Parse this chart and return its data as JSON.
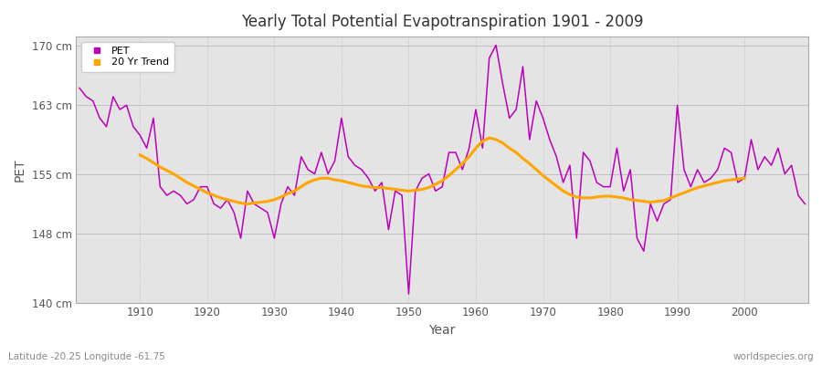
{
  "title": "Yearly Total Potential Evapotranspiration 1901 - 2009",
  "xlabel": "Year",
  "ylabel": "PET",
  "footnote_left": "Latitude -20.25 Longitude -61.75",
  "footnote_right": "worldspecies.org",
  "ylim": [
    140,
    171
  ],
  "yticks": [
    140,
    148,
    155,
    163,
    170
  ],
  "ytick_labels": [
    "140 cm",
    "148 cm",
    "155 cm",
    "163 cm",
    "170 cm"
  ],
  "xlim": [
    1900.5,
    2009.5
  ],
  "xticks": [
    1910,
    1920,
    1930,
    1940,
    1950,
    1960,
    1970,
    1980,
    1990,
    2000
  ],
  "pet_color": "#BB00BB",
  "trend_color": "#FFA500",
  "fig_bg_color": "#FFFFFF",
  "plot_bg_color": "#E4E4E4",
  "legend_labels": [
    "PET",
    "20 Yr Trend"
  ],
  "years": [
    1901,
    1902,
    1903,
    1904,
    1905,
    1906,
    1907,
    1908,
    1909,
    1910,
    1911,
    1912,
    1913,
    1914,
    1915,
    1916,
    1917,
    1918,
    1919,
    1920,
    1921,
    1922,
    1923,
    1924,
    1925,
    1926,
    1927,
    1928,
    1929,
    1930,
    1931,
    1932,
    1933,
    1934,
    1935,
    1936,
    1937,
    1938,
    1939,
    1940,
    1941,
    1942,
    1943,
    1944,
    1945,
    1946,
    1947,
    1948,
    1949,
    1950,
    1951,
    1952,
    1953,
    1954,
    1955,
    1956,
    1957,
    1958,
    1959,
    1960,
    1961,
    1962,
    1963,
    1964,
    1965,
    1966,
    1967,
    1968,
    1969,
    1970,
    1971,
    1972,
    1973,
    1974,
    1975,
    1976,
    1977,
    1978,
    1979,
    1980,
    1981,
    1982,
    1983,
    1984,
    1985,
    1986,
    1987,
    1988,
    1989,
    1990,
    1991,
    1992,
    1993,
    1994,
    1995,
    1996,
    1997,
    1998,
    1999,
    2000,
    2001,
    2002,
    2003,
    2004,
    2005,
    2006,
    2007,
    2008,
    2009
  ],
  "pet_values": [
    165.0,
    164.0,
    163.5,
    161.5,
    160.5,
    164.0,
    162.5,
    163.0,
    160.5,
    159.5,
    158.0,
    161.5,
    153.5,
    152.5,
    153.0,
    152.5,
    151.5,
    152.0,
    153.5,
    153.5,
    151.5,
    151.0,
    152.0,
    150.5,
    147.5,
    153.0,
    151.5,
    151.0,
    150.5,
    147.5,
    151.5,
    153.5,
    152.5,
    157.0,
    155.5,
    155.0,
    157.5,
    155.0,
    156.5,
    161.5,
    157.0,
    156.0,
    155.5,
    154.5,
    153.0,
    154.0,
    148.5,
    153.0,
    152.5,
    141.0,
    153.0,
    154.5,
    155.0,
    153.0,
    153.5,
    157.5,
    157.5,
    155.5,
    158.0,
    162.5,
    158.0,
    168.5,
    170.0,
    165.5,
    161.5,
    162.5,
    167.5,
    159.0,
    163.5,
    161.5,
    159.0,
    157.0,
    154.0,
    156.0,
    147.5,
    157.5,
    156.5,
    154.0,
    153.5,
    153.5,
    158.0,
    153.0,
    155.5,
    147.5,
    146.0,
    151.5,
    149.5,
    151.5,
    152.0,
    163.0,
    155.5,
    153.5,
    155.5,
    154.0,
    154.5,
    155.5,
    158.0,
    157.5,
    154.0,
    154.5,
    159.0,
    155.5,
    157.0,
    156.0,
    158.0,
    155.0,
    156.0,
    152.5,
    151.5
  ],
  "trend_values": [
    null,
    null,
    null,
    null,
    null,
    null,
    null,
    null,
    null,
    157.2,
    156.8,
    156.3,
    155.8,
    155.4,
    155.0,
    154.5,
    154.0,
    153.6,
    153.2,
    152.8,
    152.5,
    152.2,
    152.0,
    151.8,
    151.6,
    151.5,
    151.6,
    151.7,
    151.8,
    152.0,
    152.3,
    152.7,
    153.0,
    153.5,
    154.0,
    154.3,
    154.5,
    154.5,
    154.3,
    154.2,
    154.0,
    153.8,
    153.6,
    153.5,
    153.4,
    153.4,
    153.3,
    153.2,
    153.1,
    153.0,
    153.1,
    153.2,
    153.4,
    153.8,
    154.2,
    154.8,
    155.5,
    156.2,
    157.0,
    158.0,
    158.8,
    159.2,
    159.0,
    158.6,
    158.0,
    157.5,
    156.8,
    156.2,
    155.5,
    154.8,
    154.2,
    153.6,
    153.0,
    152.6,
    152.3,
    152.2,
    152.2,
    152.3,
    152.4,
    152.4,
    152.3,
    152.2,
    152.0,
    151.9,
    151.8,
    151.7,
    151.8,
    151.9,
    152.2,
    152.5,
    152.8,
    153.1,
    153.4,
    153.6,
    153.8,
    154.0,
    154.2,
    154.3,
    154.4,
    154.5,
    null,
    null,
    null,
    null,
    null,
    null,
    null,
    null,
    null
  ]
}
